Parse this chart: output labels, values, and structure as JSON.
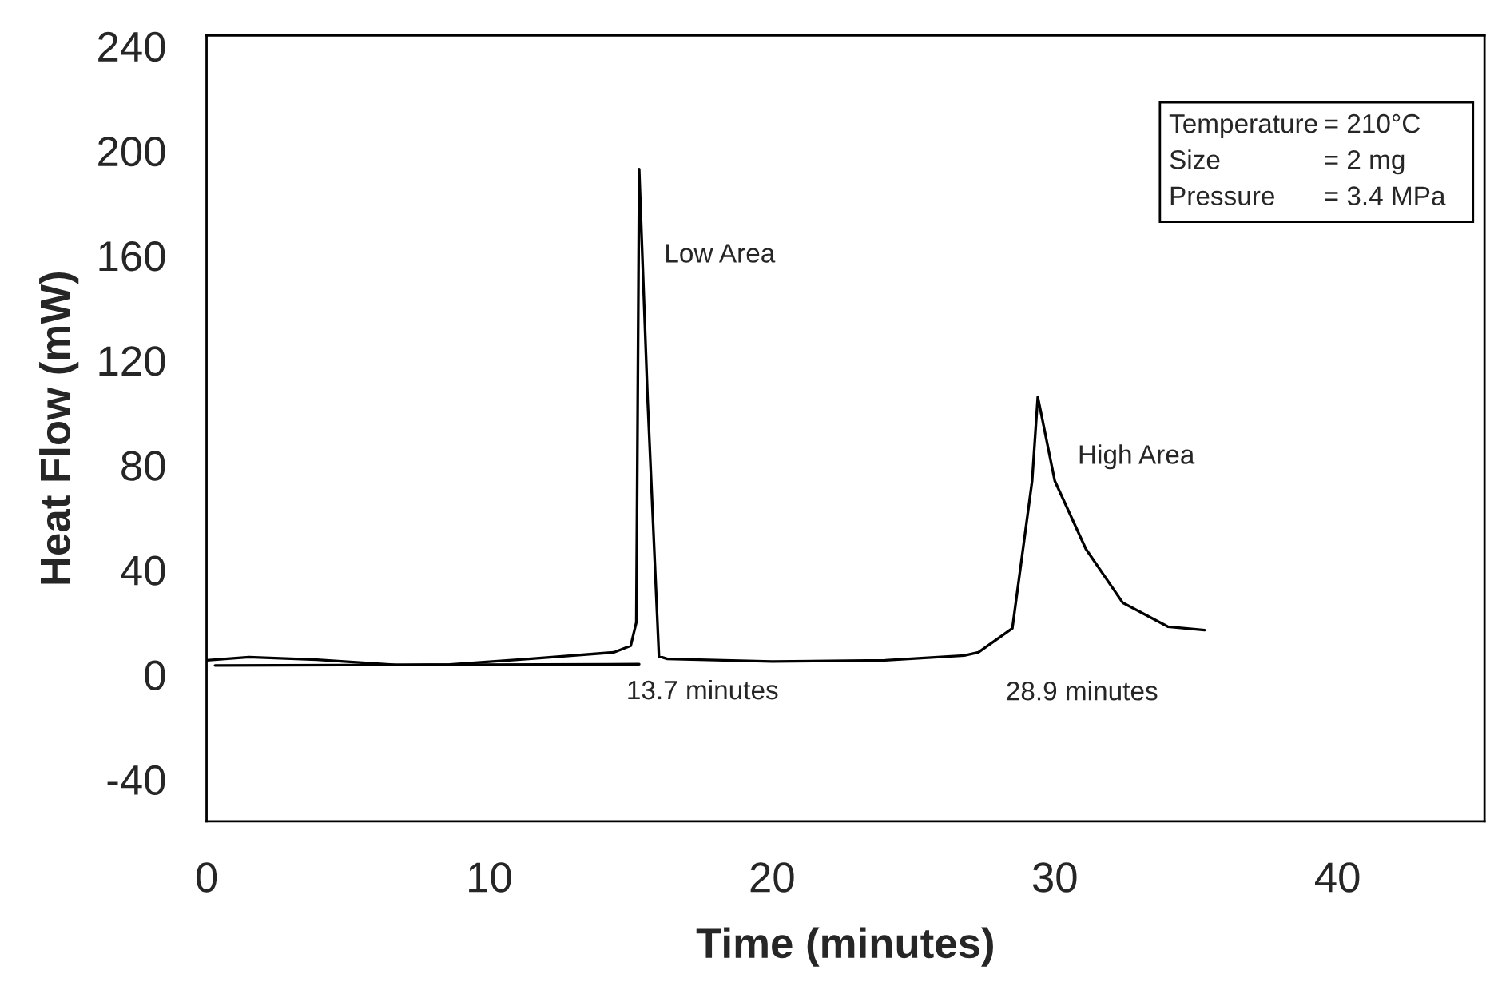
{
  "chart_data": {
    "type": "line",
    "xlabel": "Time (minutes)",
    "ylabel": "Heat Flow (mW)",
    "series": [
      {
        "color": "#000000",
        "x": [
          0,
          1.5,
          3.9,
          6.7,
          8.6,
          11.4,
          14.4,
          15.0,
          15.2,
          15.3,
          15.6,
          16.0,
          16.3,
          20,
          24,
          26.8,
          27.3,
          28.5,
          29.2,
          29.4,
          30.0,
          31.1,
          32.4,
          34.0,
          35.3
        ],
        "values": [
          5.5,
          6.7,
          5.7,
          3.7,
          3.9,
          6,
          8.5,
          11,
          20,
          193,
          105,
          7,
          6,
          5,
          5.5,
          7.3,
          8.5,
          17.7,
          74,
          106,
          74,
          48,
          27.5,
          18.3,
          17
        ]
      },
      {
        "color": "#000000",
        "x": [
          0.3,
          15.3
        ],
        "values": [
          3.5,
          4
        ]
      }
    ],
    "xlim": [
      0,
      45.2
    ],
    "xticks": [
      0,
      10,
      20,
      30,
      40
    ],
    "ylim": [
      -56,
      244
    ],
    "yticks": [
      -40,
      0,
      40,
      80,
      120,
      160,
      200,
      240
    ],
    "grid": false,
    "line_style": "solid",
    "marker": "none",
    "annotations": [
      {
        "text": "Low Area",
        "x": 15.4,
        "y": 160
      },
      {
        "text": "High Area",
        "x": 29.4,
        "y": 106
      },
      {
        "text": "13.7 minutes",
        "x": 14.4,
        "y": 8.5
      },
      {
        "text": "28.9 minutes",
        "x": 26.8,
        "y": 7.3
      },
      "Temperature = 210°C",
      "Size = 2 mg",
      "Pressure = 3.4 MPa"
    ]
  }
}
